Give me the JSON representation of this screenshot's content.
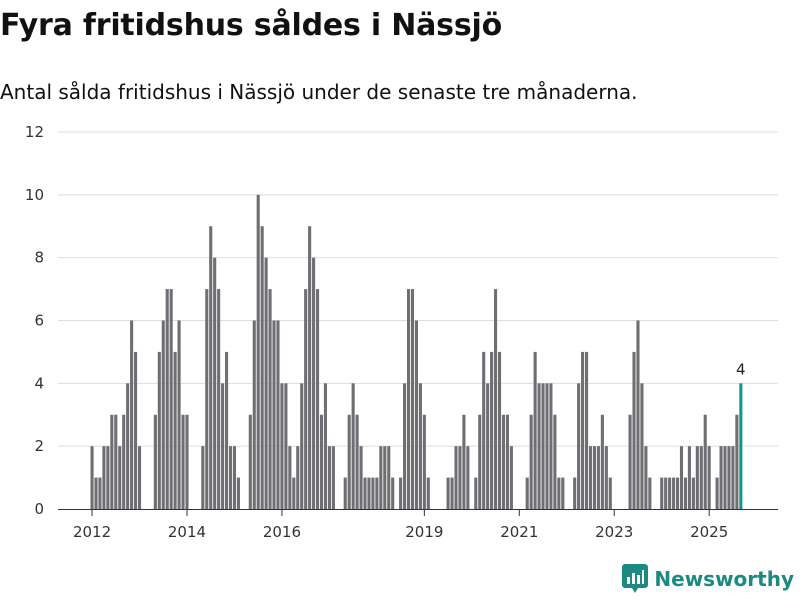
{
  "header": {
    "title": "Fyra fritidshus såldes i Nässjö",
    "subtitle": "Antal sålda fritidshus i Nässjö under de senaste tre månaderna."
  },
  "brand": {
    "name": "Newsworthy",
    "color": "#1c8a83"
  },
  "colors": {
    "bar": "#6f6e73",
    "highlight": "#1a958e",
    "grid": "#dddddd",
    "axis": "#333333"
  },
  "chart_data": {
    "type": "bar",
    "title": "Fyra fritidshus såldes i Nässjö",
    "subtitle": "Antal sålda fritidshus i Nässjö under de senaste tre månaderna.",
    "xlabel": "",
    "ylabel": "",
    "ylim": [
      0,
      12
    ],
    "yticks": [
      0,
      2,
      4,
      6,
      8,
      10,
      12
    ],
    "xticks": [
      {
        "label": "2012",
        "index": 0
      },
      {
        "label": "2014",
        "index": 24
      },
      {
        "label": "2016",
        "index": 48
      },
      {
        "label": "2019",
        "index": 84
      },
      {
        "label": "2021",
        "index": 108
      },
      {
        "label": "2023",
        "index": 132
      },
      {
        "label": "2025",
        "index": 156
      }
    ],
    "start": "2012-01",
    "values": [
      2,
      1,
      1,
      2,
      2,
      3,
      3,
      2,
      3,
      4,
      6,
      5,
      2,
      0,
      0,
      0,
      3,
      5,
      6,
      7,
      7,
      5,
      6,
      3,
      3,
      0,
      0,
      0,
      2,
      7,
      9,
      8,
      7,
      4,
      5,
      2,
      2,
      1,
      0,
      0,
      3,
      6,
      10,
      9,
      8,
      7,
      6,
      6,
      4,
      4,
      2,
      1,
      2,
      4,
      7,
      9,
      8,
      7,
      3,
      4,
      2,
      2,
      0,
      0,
      1,
      3,
      4,
      3,
      2,
      1,
      1,
      1,
      1,
      2,
      2,
      2,
      1,
      0,
      1,
      4,
      7,
      7,
      6,
      4,
      3,
      1,
      0,
      0,
      0,
      0,
      1,
      1,
      2,
      2,
      3,
      2,
      0,
      1,
      3,
      5,
      4,
      5,
      7,
      5,
      3,
      3,
      2,
      0,
      0,
      0,
      1,
      3,
      5,
      4,
      4,
      4,
      4,
      3,
      1,
      1,
      0,
      0,
      1,
      4,
      5,
      5,
      2,
      2,
      2,
      3,
      2,
      1,
      0,
      0,
      0,
      0,
      3,
      5,
      6,
      4,
      2,
      1,
      0,
      0,
      1,
      1,
      1,
      1,
      1,
      2,
      1,
      2,
      1,
      2,
      2,
      3,
      2,
      0,
      1,
      2,
      2,
      2,
      2,
      3,
      4
    ],
    "highlight_index": 164,
    "annotations": [
      {
        "index": 164,
        "text": "4"
      }
    ]
  }
}
